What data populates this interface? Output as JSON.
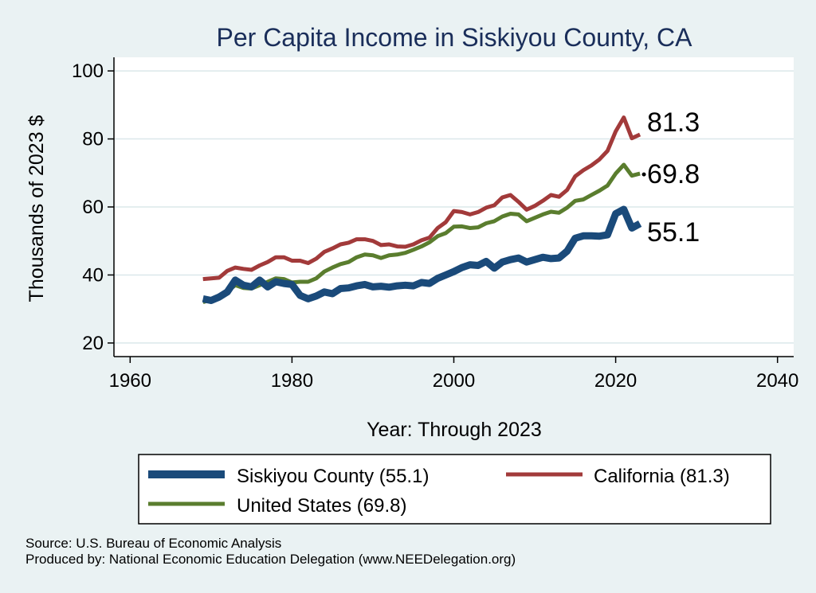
{
  "chart_data": {
    "type": "line",
    "title": "Per Capita Income in Siskiyou County, CA",
    "xlabel": "Year: Through 2023",
    "ylabel": "Thousands of 2023 $",
    "xlim": [
      1958,
      2042
    ],
    "ylim": [
      16,
      104
    ],
    "x_ticks": [
      1960,
      1980,
      2000,
      2020,
      2040
    ],
    "y_ticks": [
      20,
      40,
      60,
      80,
      100
    ],
    "grid": "horizontal",
    "legend_position": "bottom",
    "x": [
      1969,
      1970,
      1971,
      1972,
      1973,
      1974,
      1975,
      1976,
      1977,
      1978,
      1979,
      1980,
      1981,
      1982,
      1983,
      1984,
      1985,
      1986,
      1987,
      1988,
      1989,
      1990,
      1991,
      1992,
      1993,
      1994,
      1995,
      1996,
      1997,
      1998,
      1999,
      2000,
      2001,
      2002,
      2003,
      2004,
      2005,
      2006,
      2007,
      2008,
      2009,
      2010,
      2011,
      2012,
      2013,
      2014,
      2015,
      2016,
      2017,
      2018,
      2019,
      2020,
      2021,
      2022,
      2023
    ],
    "series": [
      {
        "name": "Siskiyou County (55.1)",
        "color": "#1a4a7a",
        "end_label": "55.1",
        "values": [
          33.0,
          32.5,
          33.5,
          35.0,
          38.5,
          37.0,
          36.5,
          38.5,
          36.5,
          38.0,
          37.5,
          37.2,
          34.0,
          33.0,
          33.8,
          35.0,
          34.5,
          36.0,
          36.2,
          36.8,
          37.2,
          36.5,
          36.7,
          36.4,
          36.8,
          37.0,
          36.8,
          37.8,
          37.5,
          39.0,
          40.0,
          41.0,
          42.2,
          43.0,
          42.8,
          44.0,
          42.0,
          43.8,
          44.5,
          45.0,
          43.8,
          44.5,
          45.2,
          44.8,
          45.0,
          47.0,
          50.8,
          51.5,
          51.5,
          51.4,
          51.8,
          58.0,
          59.3,
          53.8,
          55.1
        ]
      },
      {
        "name": "California (81.3)",
        "color": "#a23a3a",
        "end_label": "81.3",
        "values": [
          38.8,
          39.0,
          39.2,
          41.2,
          42.2,
          41.8,
          41.5,
          42.8,
          43.8,
          45.2,
          45.2,
          44.2,
          44.2,
          43.5,
          44.8,
          46.8,
          47.8,
          49.0,
          49.5,
          50.5,
          50.5,
          50.0,
          48.8,
          49.0,
          48.4,
          48.3,
          49.0,
          50.2,
          51.0,
          53.8,
          55.5,
          58.8,
          58.5,
          57.8,
          58.5,
          59.8,
          60.5,
          62.8,
          63.5,
          61.5,
          59.2,
          60.3,
          61.8,
          63.5,
          63.0,
          65.0,
          69.0,
          70.8,
          72.2,
          74.0,
          76.5,
          82.2,
          86.3,
          80.2,
          81.3
        ]
      },
      {
        "name": "United States (69.8)",
        "color": "#5a7d2e",
        "end_label": "69.8",
        "values": [
          32.0,
          32.8,
          34.0,
          35.2,
          37.0,
          36.2,
          36.0,
          37.0,
          38.0,
          39.0,
          38.8,
          37.8,
          38.0,
          38.0,
          39.0,
          41.0,
          42.2,
          43.2,
          43.8,
          45.2,
          46.0,
          45.8,
          45.0,
          45.8,
          46.0,
          46.5,
          47.4,
          48.4,
          49.6,
          51.4,
          52.3,
          54.2,
          54.3,
          53.8,
          54.0,
          55.2,
          55.8,
          57.2,
          58.0,
          57.8,
          55.8,
          56.8,
          57.8,
          58.6,
          58.3,
          59.8,
          61.8,
          62.2,
          63.5,
          64.8,
          66.3,
          69.8,
          72.4,
          69.2,
          69.8
        ]
      }
    ]
  },
  "legend": {
    "items": [
      {
        "label": "Siskiyou County (55.1)",
        "color": "#1a4a7a"
      },
      {
        "label": "California (81.3)",
        "color": "#a23a3a"
      },
      {
        "label": "United States (69.8)",
        "color": "#5a7d2e"
      }
    ]
  },
  "footer": {
    "source": "Source: U.S. Bureau of Economic Analysis",
    "produced_by": "Produced by: National Economic Education Delegation (www.NEEDelegation.org)"
  }
}
